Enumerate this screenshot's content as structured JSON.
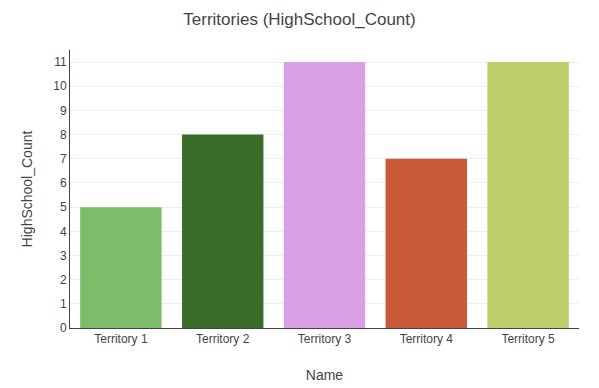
{
  "chart_data": {
    "type": "bar",
    "title": "Territories (HighSchool_Count)",
    "categories": [
      "Territory 1",
      "Territory 2",
      "Territory 3",
      "Territory 4",
      "Territory 5"
    ],
    "values": [
      5,
      8,
      11,
      7,
      11
    ],
    "colors": [
      "#7BBD6B",
      "#3A6E28",
      "#D9A0E8",
      "#C85A3A",
      "#BFCE6A"
    ],
    "xlabel": "Name",
    "ylabel": "HighSchool_Count",
    "ylim": [
      0,
      11.5
    ],
    "yticks": [
      0,
      1,
      2,
      3,
      4,
      5,
      6,
      7,
      8,
      9,
      10,
      11
    ],
    "grid": true
  }
}
